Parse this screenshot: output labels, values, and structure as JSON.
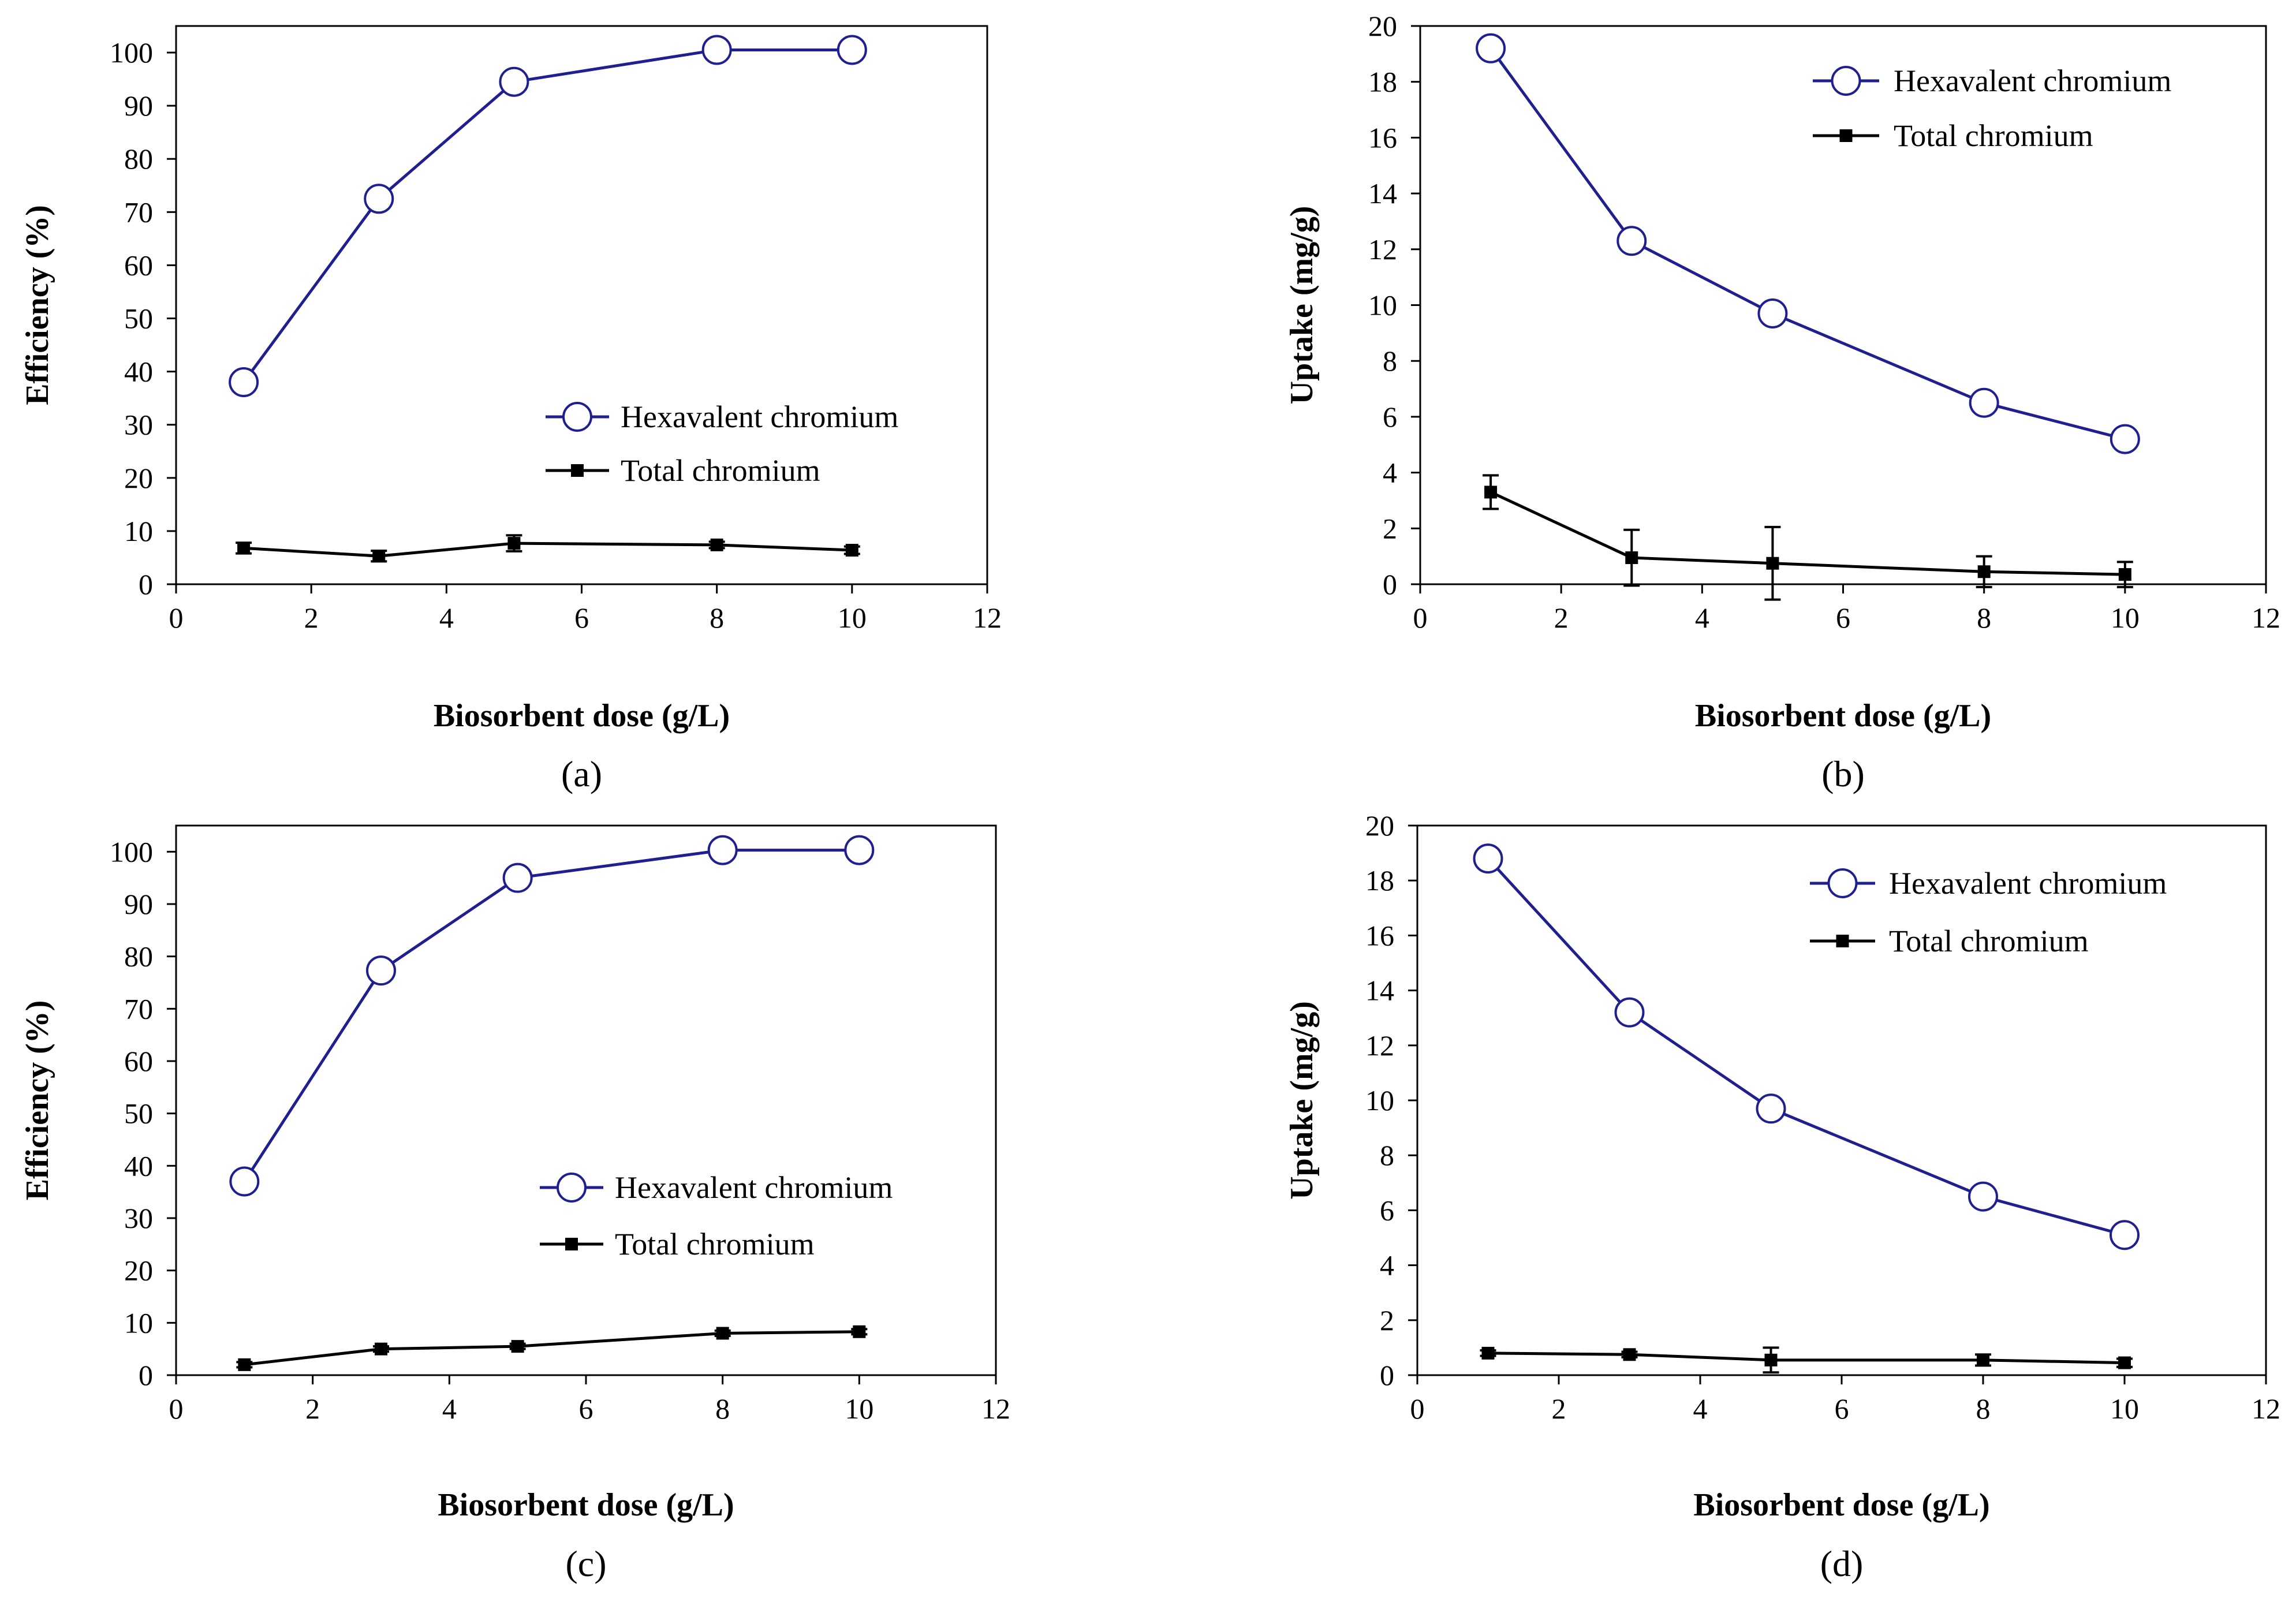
{
  "colors": {
    "hexavalent": "#1f1f8f",
    "total": "#000000",
    "axis": "#000000"
  },
  "chart_data": [
    {
      "type": "line",
      "panel_label": "(a)",
      "xlabel": "Biosorbent dose (g/L)",
      "ylabel": "Efficiency (%)",
      "xlim": [
        0,
        12
      ],
      "ylim": [
        0,
        105
      ],
      "xticks": [
        0,
        2,
        4,
        6,
        8,
        10,
        12
      ],
      "yticks": [
        0,
        10,
        20,
        30,
        40,
        50,
        60,
        70,
        80,
        90,
        100
      ],
      "grid": false,
      "legend_position": "center-right",
      "x": [
        1,
        3,
        5,
        8,
        10
      ],
      "series": [
        {
          "name": "Hexavalent chromium",
          "marker": "open-circle",
          "values": [
            38,
            72.5,
            94.5,
            100.5,
            100.5
          ],
          "errors": [
            0,
            0,
            0,
            0,
            0
          ]
        },
        {
          "name": "Total chromium",
          "marker": "filled-square",
          "values": [
            6.8,
            5.3,
            7.7,
            7.4,
            6.4
          ],
          "errors": [
            1,
            1,
            1.5,
            0.6,
            0.7
          ]
        }
      ]
    },
    {
      "type": "line",
      "panel_label": "(b)",
      "xlabel": "Biosorbent dose (g/L)",
      "ylabel": "Uptake (mg/g)",
      "xlim": [
        0,
        12
      ],
      "ylim": [
        0,
        20
      ],
      "xticks": [
        0,
        2,
        4,
        6,
        8,
        10,
        12
      ],
      "yticks": [
        0,
        2,
        4,
        6,
        8,
        10,
        12,
        14,
        16,
        18,
        20
      ],
      "grid": false,
      "legend_position": "top-right",
      "x": [
        1,
        3,
        5,
        8,
        10
      ],
      "series": [
        {
          "name": "Hexavalent chromium",
          "marker": "open-circle",
          "values": [
            19.2,
            12.3,
            9.7,
            6.5,
            5.2
          ],
          "errors": [
            0.3,
            0,
            0,
            0,
            0
          ]
        },
        {
          "name": "Total chromium",
          "marker": "filled-square",
          "values": [
            3.3,
            0.95,
            0.75,
            0.45,
            0.35
          ],
          "errors": [
            0.6,
            1,
            1.3,
            0.55,
            0.45
          ]
        }
      ]
    },
    {
      "type": "line",
      "panel_label": "(c)",
      "xlabel": "Biosorbent dose (g/L)",
      "ylabel": "Efficiency (%)",
      "xlim": [
        0,
        12
      ],
      "ylim": [
        0,
        105
      ],
      "xticks": [
        0,
        2,
        4,
        6,
        8,
        10,
        12
      ],
      "yticks": [
        0,
        10,
        20,
        30,
        40,
        50,
        60,
        70,
        80,
        90,
        100
      ],
      "grid": false,
      "legend_position": "center-right",
      "x": [
        1,
        3,
        5,
        8,
        10
      ],
      "series": [
        {
          "name": "Hexavalent chromium",
          "marker": "open-circle",
          "values": [
            37,
            77.3,
            95,
            100.3,
            100.3
          ],
          "errors": [
            0,
            0,
            0,
            0,
            0
          ]
        },
        {
          "name": "Total chromium",
          "marker": "filled-square",
          "values": [
            2,
            5,
            5.5,
            8,
            8.3
          ],
          "errors": [
            0.5,
            0.5,
            0.5,
            0.5,
            0.5
          ]
        }
      ]
    },
    {
      "type": "line",
      "panel_label": "(d)",
      "xlabel": "Biosorbent dose (g/L)",
      "ylabel": "Uptake (mg/g)",
      "xlim": [
        0,
        12
      ],
      "ylim": [
        0,
        20
      ],
      "xticks": [
        0,
        2,
        4,
        6,
        8,
        10,
        12
      ],
      "yticks": [
        0,
        2,
        4,
        6,
        8,
        10,
        12,
        14,
        16,
        18,
        20
      ],
      "grid": false,
      "legend_position": "top-right",
      "x": [
        1,
        3,
        5,
        8,
        10
      ],
      "series": [
        {
          "name": "Hexavalent chromium",
          "marker": "open-circle",
          "values": [
            18.8,
            13.2,
            9.7,
            6.5,
            5.1
          ],
          "errors": [
            0.4,
            0,
            0,
            0,
            0
          ]
        },
        {
          "name": "Total chromium",
          "marker": "filled-square",
          "values": [
            0.8,
            0.75,
            0.55,
            0.55,
            0.45
          ],
          "errors": [
            0.1,
            0.1,
            0.45,
            0.2,
            0.15
          ]
        }
      ]
    }
  ]
}
